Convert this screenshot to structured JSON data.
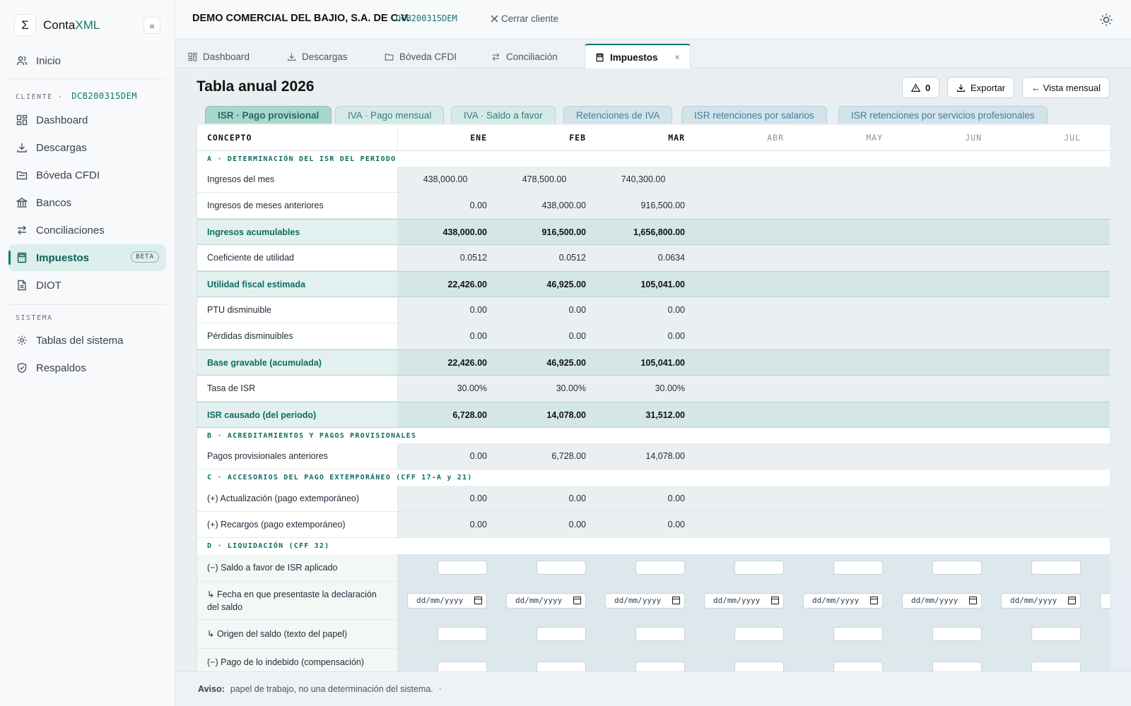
{
  "app": {
    "logo_glyph": "Σ",
    "name_prefix": "Conta",
    "name_accent": "XML",
    "collapse_glyph": "«"
  },
  "sidebar": {
    "home": "Inicio",
    "client_section_label": "CLIENTE",
    "client_code": "DCB200315DEM",
    "items": [
      {
        "label": "Dashboard",
        "icon": "dashboard-icon"
      },
      {
        "label": "Descargas",
        "icon": "download-icon"
      },
      {
        "label": "Bóveda CFDI",
        "icon": "folder-icon"
      },
      {
        "label": "Bancos",
        "icon": "bank-icon"
      },
      {
        "label": "Conciliaciones",
        "icon": "arrows-icon"
      },
      {
        "label": "Impuestos",
        "icon": "calculator-icon",
        "badge": "BETA",
        "active": true
      },
      {
        "label": "DIOT",
        "icon": "document-icon"
      }
    ],
    "system_section_label": "SISTEMA",
    "system_items": [
      {
        "label": "Tablas del sistema",
        "icon": "gear-icon"
      },
      {
        "label": "Respaldos",
        "icon": "shield-icon"
      }
    ]
  },
  "header": {
    "company": "DEMO COMERCIAL DEL BAJIO, S.A. DE C.V.",
    "separator": "·",
    "rfc": "DCB200315DEM",
    "close_client": "Cerrar cliente"
  },
  "module_tabs": [
    {
      "label": "Dashboard"
    },
    {
      "label": "Descargas"
    },
    {
      "label": "Bóveda CFDI"
    },
    {
      "label": "Conciliación"
    },
    {
      "label": "Impuestos",
      "active": true,
      "close": "×"
    }
  ],
  "page": {
    "title": "Tabla anual 2026",
    "warnings_count": "0",
    "export_label": "Exportar",
    "monthly_view_label": "← Vista mensual"
  },
  "sub_tabs": [
    {
      "label": "ISR · Pago provisional",
      "active": true
    },
    {
      "label": "IVA · Pago mensual"
    },
    {
      "label": "IVA · Saldo a favor"
    },
    {
      "label": "Retenciones de IVA"
    },
    {
      "label": "ISR retenciones por salarios"
    },
    {
      "label": "ISR retenciones por servicios profesionales"
    }
  ],
  "table": {
    "concept_header": "CONCEPTO",
    "months": [
      "ENE",
      "FEB",
      "MAR",
      "ABR",
      "MAY",
      "JUN",
      "JUL"
    ],
    "section_a": "A · DETERMINACIÓN DEL ISR DEL PERIODO",
    "section_b": "B · ACREDITAMIENTOS Y PAGOS PROVISIONALES",
    "section_c": "C · ACCESORIOS DEL PAGO EXTEMPORÁNEO (CFF 17-A y 21)",
    "section_d": "D · LIQUIDACIÓN (CFF 32)",
    "rows": {
      "ingresos_mes": {
        "label": "Ingresos del mes",
        "values": [
          "438,000.00",
          "478,500.00",
          "740,300.00"
        ]
      },
      "ingresos_anteriores": {
        "label": "Ingresos de meses anteriores",
        "values": [
          "0.00",
          "438,000.00",
          "916,500.00"
        ]
      },
      "ingresos_acumulables": {
        "label": "Ingresos acumulables",
        "values": [
          "438,000.00",
          "916,500.00",
          "1,656,800.00"
        ]
      },
      "coeficiente": {
        "label": "Coeficiente de utilidad",
        "values": [
          "0.0512",
          "0.0512",
          "0.0634"
        ]
      },
      "utilidad": {
        "label": "Utilidad fiscal estimada",
        "values": [
          "22,426.00",
          "46,925.00",
          "105,041.00"
        ]
      },
      "ptu": {
        "label": "PTU disminuible",
        "values": [
          "0.00",
          "0.00",
          "0.00"
        ]
      },
      "perdidas": {
        "label": "Pérdidas disminuibles",
        "values": [
          "0.00",
          "0.00",
          "0.00"
        ]
      },
      "base": {
        "label": "Base gravable (acumulada)",
        "values": [
          "22,426.00",
          "46,925.00",
          "105,041.00"
        ]
      },
      "tasa": {
        "label": "Tasa de ISR",
        "values": [
          "30.00%",
          "30.00%",
          "30.00%"
        ]
      },
      "isr_causado": {
        "label": "ISR causado (del periodo)",
        "values": [
          "6,728.00",
          "14,078.00",
          "31,512.00"
        ]
      },
      "pagos_anteriores": {
        "label": "Pagos provisionales anteriores",
        "values": [
          "0.00",
          "6,728.00",
          "14,078.00"
        ]
      },
      "actualizacion": {
        "label": "(+) Actualización (pago extemporáneo)",
        "values": [
          "0.00",
          "0.00",
          "0.00"
        ]
      },
      "recargos": {
        "label": "(+) Recargos (pago extemporáneo)",
        "values": [
          "0.00",
          "0.00",
          "0.00"
        ]
      },
      "saldo_favor": {
        "label": "(−) Saldo a favor de ISR aplicado"
      },
      "fecha_saldo": {
        "label": "↳ Fecha en que presentaste la declaración del saldo",
        "placeholder": "dd/mm/yyyy"
      },
      "origen_saldo": {
        "label": "↳ Origen del saldo (texto del papel)"
      },
      "pago_indebido": {
        "label": "(−) Pago de lo indebido (compensación)"
      }
    }
  },
  "notice": {
    "label": "Aviso:",
    "text": "papel de trabajo, no una determinación del sistema.",
    "trailing": "·"
  }
}
